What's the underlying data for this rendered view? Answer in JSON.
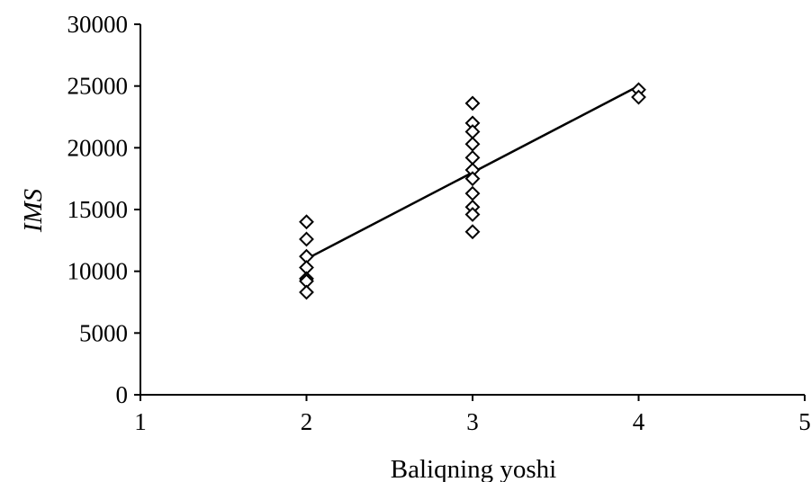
{
  "chart_data": {
    "type": "scatter",
    "title": "",
    "xlabel": "Baliqning yoshi",
    "ylabel": "IMS",
    "xlim": [
      1,
      5
    ],
    "ylim": [
      0,
      30000
    ],
    "x_ticks": [
      1,
      2,
      3,
      4,
      5
    ],
    "y_ticks": [
      0,
      5000,
      10000,
      15000,
      20000,
      25000,
      30000
    ],
    "x_tick_labels": [
      "1",
      "2",
      "3",
      "4",
      "5"
    ],
    "y_tick_labels": [
      "0",
      "5000",
      "10000",
      "15000",
      "20000",
      "25000",
      "30000"
    ],
    "grid": false,
    "marker": "diamond",
    "series": [
      {
        "points": [
          {
            "x": 2,
            "y": 14000
          },
          {
            "x": 2,
            "y": 12600
          },
          {
            "x": 2,
            "y": 11200
          },
          {
            "x": 2,
            "y": 10300
          },
          {
            "x": 2,
            "y": 9400
          },
          {
            "x": 2,
            "y": 9200
          },
          {
            "x": 2,
            "y": 8300
          },
          {
            "x": 3,
            "y": 23600
          },
          {
            "x": 3,
            "y": 22000
          },
          {
            "x": 3,
            "y": 21300
          },
          {
            "x": 3,
            "y": 20300
          },
          {
            "x": 3,
            "y": 19200
          },
          {
            "x": 3,
            "y": 18200
          },
          {
            "x": 3,
            "y": 17500
          },
          {
            "x": 3,
            "y": 16300
          },
          {
            "x": 3,
            "y": 15200
          },
          {
            "x": 3,
            "y": 14600
          },
          {
            "x": 3,
            "y": 13200
          },
          {
            "x": 4,
            "y": 24700
          },
          {
            "x": 4,
            "y": 24100
          }
        ]
      }
    ],
    "trendline": {
      "x": [
        2,
        4
      ],
      "y": [
        11000,
        25000
      ]
    },
    "colors": {
      "marker_stroke": "#000000",
      "marker_fill": "#ffffff",
      "line": "#000000",
      "axis": "#000000"
    }
  }
}
